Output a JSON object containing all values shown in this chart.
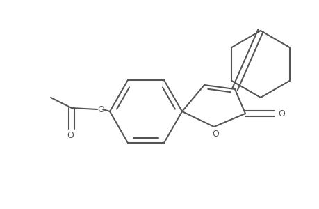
{
  "bg_color": "#ffffff",
  "line_color": "#555555",
  "line_width": 1.5,
  "fig_width": 4.6,
  "fig_height": 3.0,
  "dpi": 100,
  "xlim": [
    0,
    460
  ],
  "ylim": [
    0,
    300
  ]
}
